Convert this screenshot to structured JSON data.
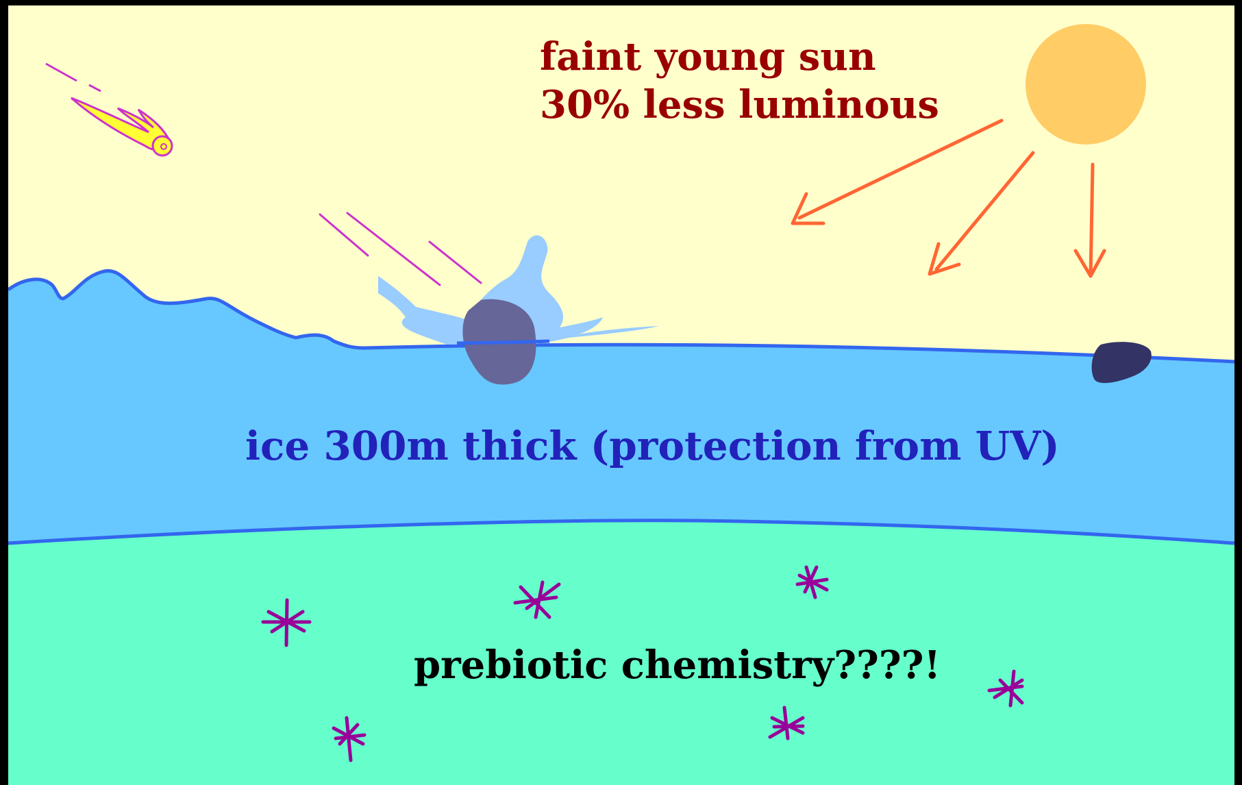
{
  "sun_caption": {
    "line1": "faint young sun",
    "line2": "30% less luminous"
  },
  "ice_caption": "ice 300m thick (protection from UV)",
  "ocean_caption": "prebiotic chemistry????!",
  "colors": {
    "border": "#000000",
    "sky": "#ffffcc",
    "ice": "#66c8ff",
    "ocean": "#66ffcc",
    "ice_outline": "#3366ee",
    "sun": "#ffcc66",
    "sun_rays": "#ff6633",
    "sun_caption_text": "#990000",
    "ice_caption_text": "#2222bb",
    "ocean_caption_text": "#000000",
    "molecules": "#990099",
    "impactor": "#666699",
    "splash": "#99ccff",
    "rock": "#333366",
    "meteor_streak": "#cc33cc",
    "comet_body": "#ffff33"
  },
  "icons": [
    "sun-icon",
    "comet-icon",
    "impactor-rock-icon",
    "ice-splash-icon",
    "surface-rock-icon",
    "molecule-icon"
  ]
}
